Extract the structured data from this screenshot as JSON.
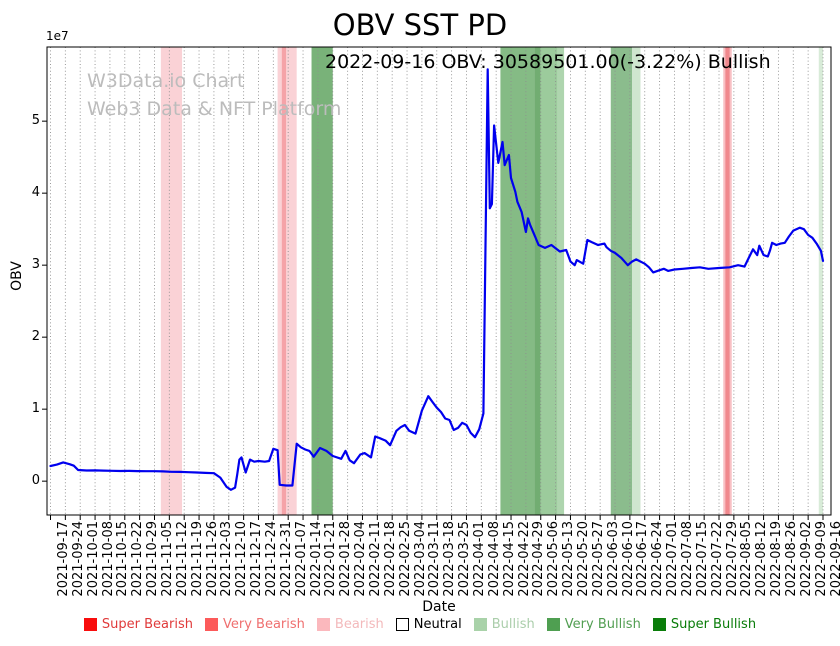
{
  "title": "OBV SST PD",
  "annotation": "2022-09-16 OBV: 30589501.00(-3.22%) Bullish",
  "watermark": {
    "line1": "W3Data.io Chart",
    "line2": "Web3 Data & NFT Platform"
  },
  "axes": {
    "xlabel": "Date",
    "ylabel": "OBV",
    "offset_text": "1e7",
    "ytick_labels": [
      "0",
      "1",
      "2",
      "3",
      "4",
      "5"
    ],
    "ytick_values": [
      0,
      10000000,
      20000000,
      30000000,
      40000000,
      50000000
    ],
    "xtick_labels": [
      "2021-09-17",
      "2021-09-24",
      "2021-10-01",
      "2021-10-08",
      "2021-10-15",
      "2021-10-22",
      "2021-10-29",
      "2021-11-05",
      "2021-11-12",
      "2021-11-19",
      "2021-11-26",
      "2021-12-03",
      "2021-12-10",
      "2021-12-17",
      "2021-12-24",
      "2021-12-31",
      "2022-01-07",
      "2022-01-14",
      "2022-01-21",
      "2022-01-28",
      "2022-02-04",
      "2022-02-11",
      "2022-02-18",
      "2022-02-25",
      "2022-03-04",
      "2022-03-11",
      "2022-03-18",
      "2022-03-25",
      "2022-04-01",
      "2022-04-08",
      "2022-04-15",
      "2022-04-22",
      "2022-04-29",
      "2022-05-06",
      "2022-05-13",
      "2022-05-20",
      "2022-05-27",
      "2022-06-03",
      "2022-06-10",
      "2022-06-17",
      "2022-06-24",
      "2022-07-01",
      "2022-07-08",
      "2022-07-15",
      "2022-07-22",
      "2022-07-29",
      "2022-08-05",
      "2022-08-12",
      "2022-08-19",
      "2022-08-26",
      "2022-09-02",
      "2022-09-09",
      "2022-09-16"
    ]
  },
  "legend": {
    "items": [
      {
        "label": "Super Bearish",
        "color": "#f80d0d",
        "text_color": "#e03a3a",
        "edge": null
      },
      {
        "label": "Very Bearish",
        "color": "#fc5a5a",
        "text_color": "#ef6f6f",
        "edge": null
      },
      {
        "label": "Bearish",
        "color": "#fbb8bd",
        "text_color": "#f3b9bb",
        "edge": null
      },
      {
        "label": "Neutral",
        "color": "#ffffff",
        "text_color": "#000000",
        "edge": "#000000"
      },
      {
        "label": "Bullish",
        "color": "#a9d2a9",
        "text_color": "#abceab",
        "edge": null
      },
      {
        "label": "Very Bullish",
        "color": "#4f9f51",
        "text_color": "#529e52",
        "edge": null
      },
      {
        "label": "Super Bullish",
        "color": "#0a7d0a",
        "text_color": "#097c09",
        "edge": null
      }
    ]
  },
  "chart_data": {
    "type": "line",
    "title": "OBV SST PD",
    "xlabel": "Date",
    "ylabel": "OBV",
    "x_start": "2021-09-17",
    "x_end": "2022-09-16",
    "ylim": [
      -4700000,
      60300000
    ],
    "grid": "vertical-dotted",
    "legend_position": "bottom-center",
    "line": {
      "name": "OBV",
      "color": "#0000ee"
    },
    "last_point": {
      "date": "2022-09-16",
      "obv": 30589501.0,
      "change_pct": -3.22,
      "signal": "Bullish"
    },
    "points": [
      [
        "2021-09-17",
        2100000
      ],
      [
        "2021-09-20",
        2300000
      ],
      [
        "2021-09-23",
        2600000
      ],
      [
        "2021-09-26",
        2350000
      ],
      [
        "2021-09-28",
        2150000
      ],
      [
        "2021-09-30",
        1550000
      ],
      [
        "2021-10-04",
        1480000
      ],
      [
        "2021-10-08",
        1500000
      ],
      [
        "2021-10-12",
        1460000
      ],
      [
        "2021-10-16",
        1440000
      ],
      [
        "2021-10-20",
        1410000
      ],
      [
        "2021-10-24",
        1430000
      ],
      [
        "2021-10-28",
        1400000
      ],
      [
        "2021-11-01",
        1390000
      ],
      [
        "2021-11-05",
        1380000
      ],
      [
        "2021-11-09",
        1350000
      ],
      [
        "2021-11-13",
        1300000
      ],
      [
        "2021-11-17",
        1280000
      ],
      [
        "2021-11-21",
        1250000
      ],
      [
        "2021-11-25",
        1200000
      ],
      [
        "2021-11-29",
        1150000
      ],
      [
        "2021-12-03",
        1100000
      ],
      [
        "2021-12-06",
        500000
      ],
      [
        "2021-12-09",
        -800000
      ],
      [
        "2021-12-11",
        -1200000
      ],
      [
        "2021-12-13",
        -900000
      ],
      [
        "2021-12-14",
        1000000
      ],
      [
        "2021-12-15",
        3000000
      ],
      [
        "2021-12-16",
        3300000
      ],
      [
        "2021-12-18",
        1200000
      ],
      [
        "2021-12-20",
        3000000
      ],
      [
        "2021-12-22",
        2700000
      ],
      [
        "2021-12-24",
        2800000
      ],
      [
        "2021-12-27",
        2700000
      ],
      [
        "2021-12-29",
        2800000
      ],
      [
        "2021-12-31",
        4500000
      ],
      [
        "2022-01-02",
        4300000
      ],
      [
        "2022-01-03",
        -500000
      ],
      [
        "2022-01-06",
        -600000
      ],
      [
        "2022-01-09",
        -600000
      ],
      [
        "2022-01-11",
        5200000
      ],
      [
        "2022-01-13",
        4700000
      ],
      [
        "2022-01-15",
        4400000
      ],
      [
        "2022-01-17",
        4200000
      ],
      [
        "2022-01-19",
        3400000
      ],
      [
        "2022-01-22",
        4600000
      ],
      [
        "2022-01-25",
        4200000
      ],
      [
        "2022-01-28",
        3500000
      ],
      [
        "2022-02-01",
        3100000
      ],
      [
        "2022-02-03",
        4200000
      ],
      [
        "2022-02-05",
        2900000
      ],
      [
        "2022-02-07",
        2500000
      ],
      [
        "2022-02-10",
        3700000
      ],
      [
        "2022-02-12",
        3900000
      ],
      [
        "2022-02-15",
        3300000
      ],
      [
        "2022-02-17",
        6200000
      ],
      [
        "2022-02-19",
        6000000
      ],
      [
        "2022-02-22",
        5600000
      ],
      [
        "2022-02-24",
        5000000
      ],
      [
        "2022-02-27",
        7000000
      ],
      [
        "2022-03-01",
        7500000
      ],
      [
        "2022-03-03",
        7800000
      ],
      [
        "2022-03-05",
        7000000
      ],
      [
        "2022-03-08",
        6600000
      ],
      [
        "2022-03-11",
        9800000
      ],
      [
        "2022-03-14",
        11800000
      ],
      [
        "2022-03-16",
        11000000
      ],
      [
        "2022-03-18",
        10200000
      ],
      [
        "2022-03-20",
        9600000
      ],
      [
        "2022-03-22",
        8700000
      ],
      [
        "2022-03-24",
        8500000
      ],
      [
        "2022-03-26",
        7100000
      ],
      [
        "2022-03-28",
        7400000
      ],
      [
        "2022-03-30",
        8100000
      ],
      [
        "2022-04-01",
        7800000
      ],
      [
        "2022-04-03",
        6700000
      ],
      [
        "2022-04-05",
        6100000
      ],
      [
        "2022-04-07",
        7200000
      ],
      [
        "2022-04-09",
        9400000
      ],
      [
        "2022-04-11",
        57200000
      ],
      [
        "2022-04-12",
        37900000
      ],
      [
        "2022-04-13",
        38500000
      ],
      [
        "2022-04-14",
        49400000
      ],
      [
        "2022-04-16",
        44200000
      ],
      [
        "2022-04-18",
        47100000
      ],
      [
        "2022-04-19",
        43900000
      ],
      [
        "2022-04-21",
        45300000
      ],
      [
        "2022-04-22",
        42100000
      ],
      [
        "2022-04-24",
        40200000
      ],
      [
        "2022-04-25",
        38800000
      ],
      [
        "2022-04-27",
        37400000
      ],
      [
        "2022-04-29",
        34600000
      ],
      [
        "2022-04-30",
        36500000
      ],
      [
        "2022-05-01",
        35600000
      ],
      [
        "2022-05-03",
        34200000
      ],
      [
        "2022-05-05",
        32800000
      ],
      [
        "2022-05-08",
        32400000
      ],
      [
        "2022-05-11",
        32800000
      ],
      [
        "2022-05-15",
        31900000
      ],
      [
        "2022-05-18",
        32100000
      ],
      [
        "2022-05-20",
        30500000
      ],
      [
        "2022-05-22",
        30000000
      ],
      [
        "2022-05-23",
        30700000
      ],
      [
        "2022-05-26",
        30200000
      ],
      [
        "2022-05-28",
        33500000
      ],
      [
        "2022-05-30",
        33200000
      ],
      [
        "2022-06-02",
        32800000
      ],
      [
        "2022-06-05",
        33000000
      ],
      [
        "2022-06-06",
        32500000
      ],
      [
        "2022-06-08",
        32000000
      ],
      [
        "2022-06-10",
        31700000
      ],
      [
        "2022-06-13",
        31000000
      ],
      [
        "2022-06-16",
        30000000
      ],
      [
        "2022-06-18",
        30500000
      ],
      [
        "2022-06-20",
        30800000
      ],
      [
        "2022-06-24",
        30200000
      ],
      [
        "2022-06-26",
        29700000
      ],
      [
        "2022-06-28",
        29000000
      ],
      [
        "2022-07-01",
        29300000
      ],
      [
        "2022-07-03",
        29500000
      ],
      [
        "2022-07-05",
        29200000
      ],
      [
        "2022-07-08",
        29400000
      ],
      [
        "2022-07-12",
        29500000
      ],
      [
        "2022-07-16",
        29600000
      ],
      [
        "2022-07-20",
        29700000
      ],
      [
        "2022-07-24",
        29500000
      ],
      [
        "2022-07-29",
        29600000
      ],
      [
        "2022-08-03",
        29700000
      ],
      [
        "2022-08-07",
        30000000
      ],
      [
        "2022-08-10",
        29800000
      ],
      [
        "2022-08-12",
        31000000
      ],
      [
        "2022-08-14",
        32200000
      ],
      [
        "2022-08-16",
        31400000
      ],
      [
        "2022-08-17",
        32700000
      ],
      [
        "2022-08-19",
        31400000
      ],
      [
        "2022-08-21",
        31200000
      ],
      [
        "2022-08-22",
        32000000
      ],
      [
        "2022-08-23",
        33100000
      ],
      [
        "2022-08-25",
        32800000
      ],
      [
        "2022-08-27",
        33000000
      ],
      [
        "2022-08-29",
        33100000
      ],
      [
        "2022-08-31",
        34000000
      ],
      [
        "2022-09-02",
        34800000
      ],
      [
        "2022-09-05",
        35200000
      ],
      [
        "2022-09-07",
        35000000
      ],
      [
        "2022-09-09",
        34200000
      ],
      [
        "2022-09-11",
        33800000
      ],
      [
        "2022-09-13",
        33000000
      ],
      [
        "2022-09-15",
        32000000
      ],
      [
        "2022-09-16",
        30589501
      ]
    ],
    "bands": [
      {
        "from": "2021-11-08",
        "to": "2021-11-18",
        "color": "#fad2d6",
        "signal": "Bearish"
      },
      {
        "from": "2022-01-02",
        "to": "2022-01-11",
        "color": "#fad2d6",
        "signal": "Bearish"
      },
      {
        "from": "2022-01-04",
        "to": "2022-01-06",
        "color": "#f5a3a8",
        "signal": "Very Bearish"
      },
      {
        "from": "2022-01-18",
        "to": "2022-01-28",
        "color": "#79b279",
        "signal": "Very Bullish"
      },
      {
        "from": "2022-04-17",
        "to": "2022-05-03",
        "color": "#85bb85",
        "signal": "Very Bullish"
      },
      {
        "from": "2022-05-03",
        "to": "2022-05-06",
        "color": "#72ad72",
        "signal": "Very Bullish"
      },
      {
        "from": "2022-05-06",
        "to": "2022-05-14",
        "color": "#9ccb9c",
        "signal": "Bullish"
      },
      {
        "from": "2022-05-14",
        "to": "2022-05-17",
        "color": "#aed5ae",
        "signal": "Bullish"
      },
      {
        "from": "2022-06-08",
        "to": "2022-06-18",
        "color": "#8bbc8d",
        "signal": "Very Bullish"
      },
      {
        "from": "2022-06-18",
        "to": "2022-06-22",
        "color": "#cfe6cf",
        "signal": "Bullish"
      },
      {
        "from": "2022-07-31",
        "to": "2022-08-04",
        "color": "#f8c0c4",
        "signal": "Bearish"
      },
      {
        "from": "2022-08-01",
        "to": "2022-08-03",
        "color": "#f0888d",
        "signal": "Very Bearish"
      },
      {
        "from": "2022-09-14",
        "to": "2022-09-16",
        "color": "#d8ebd8",
        "signal": "Bullish"
      }
    ]
  }
}
